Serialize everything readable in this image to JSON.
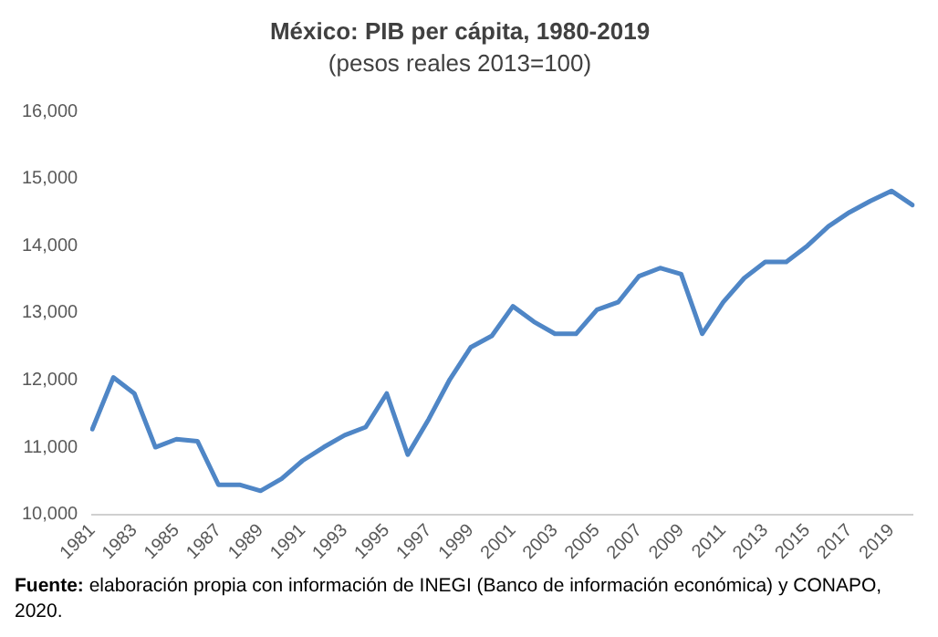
{
  "chart_data": {
    "type": "line",
    "title": "México: PIB per cápita, 1980-2019",
    "subtitle": "(pesos reales 2013=100)",
    "categories": [
      "1981",
      null,
      "1983",
      null,
      "1985",
      null,
      "1987",
      null,
      "1989",
      null,
      "1991",
      null,
      "1993",
      null,
      "1995",
      null,
      "1997",
      null,
      "1999",
      null,
      "2001",
      null,
      "2003",
      null,
      "2005",
      null,
      "2007",
      null,
      "2009",
      null,
      "2011",
      null,
      "2013",
      null,
      "2015",
      null,
      "2017",
      null,
      "2019",
      null
    ],
    "series": [
      {
        "color": "#4f86c6",
        "values": [
          11270,
          12040,
          11800,
          11000,
          11120,
          11090,
          10440,
          10440,
          10350,
          10530,
          10800,
          11000,
          11180,
          11300,
          11800,
          10890,
          11420,
          12010,
          12490,
          12660,
          13100,
          12870,
          12690,
          12690,
          13050,
          13160,
          13550,
          13670,
          13580,
          12690,
          13160,
          13520,
          13760,
          13760,
          14000,
          14290,
          14500,
          14670,
          14820,
          14610
        ]
      }
    ],
    "ylim": [
      10000,
      16000
    ],
    "yticks": [
      {
        "value": 10000,
        "label": "10,000"
      },
      {
        "value": 11000,
        "label": "11,000"
      },
      {
        "value": 12000,
        "label": "12,000"
      },
      {
        "value": 13000,
        "label": "13,000"
      },
      {
        "value": 14000,
        "label": "14,000"
      },
      {
        "value": 15000,
        "label": "15,000"
      },
      {
        "value": 16000,
        "label": "16,000"
      }
    ],
    "grid": false,
    "legend": false,
    "marker": "none",
    "line_style": "solid",
    "annotations": [
      "Fuente: elaboración propia con información de INEGI (Banco de información económica) y CONAPO, 2020."
    ]
  }
}
